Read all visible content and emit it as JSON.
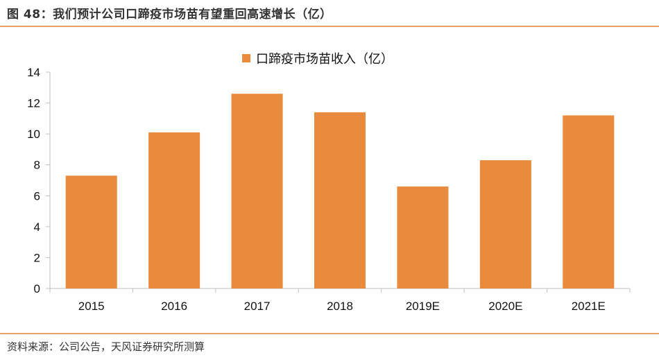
{
  "figure": {
    "title": "图 48：我们预计公司口蹄疫市场苗有望重回高速增长（亿）",
    "source": "资料来源：公司公告，天风证券研究所测算"
  },
  "chart_data": {
    "type": "bar",
    "categories": [
      "2015",
      "2016",
      "2017",
      "2018",
      "2019E",
      "2020E",
      "2021E"
    ],
    "series": [
      {
        "name": "口蹄疫市场苗收入（亿）",
        "values": [
          7.3,
          10.1,
          12.6,
          11.4,
          6.6,
          8.3,
          11.2
        ],
        "color": "#e88b3c"
      }
    ],
    "title": "",
    "xlabel": "",
    "ylabel": "",
    "ylim": [
      0,
      14
    ],
    "yticks": [
      0,
      2,
      4,
      6,
      8,
      10,
      12,
      14
    ],
    "grid": false,
    "legend_position": "top-center"
  }
}
